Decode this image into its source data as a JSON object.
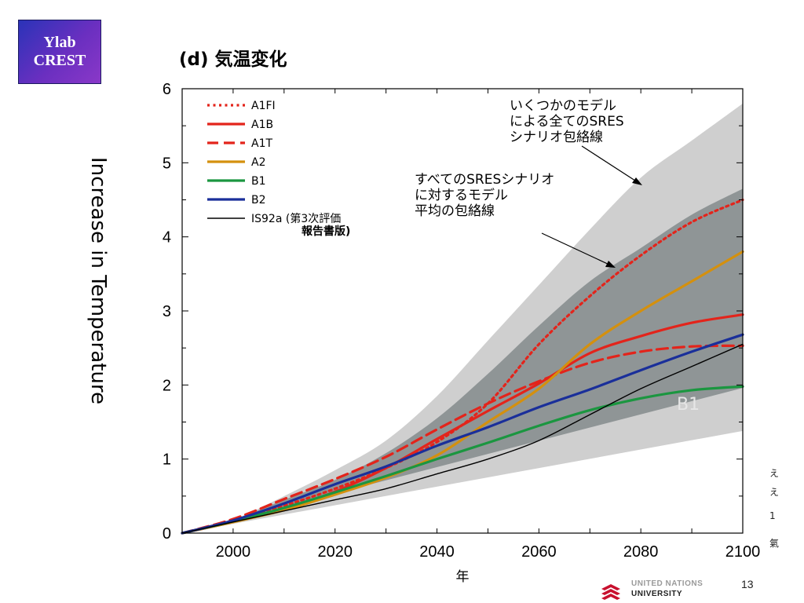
{
  "logo": {
    "line1": "Ylab",
    "line2": "CREST"
  },
  "chart_data": {
    "type": "line",
    "title": "(d) 気温変化",
    "xlabel": "年",
    "ylabel": "Increase in Temperature",
    "xlim": [
      1990,
      2100
    ],
    "ylim": [
      0,
      6
    ],
    "xticks": [
      2000,
      2020,
      2040,
      2060,
      2080,
      2100
    ],
    "yticks": [
      0,
      1,
      2,
      3,
      4,
      5,
      6
    ],
    "legend_position": "top-left",
    "x": [
      1990,
      2000,
      2010,
      2020,
      2030,
      2040,
      2050,
      2060,
      2070,
      2080,
      2090,
      2100
    ],
    "series": [
      {
        "name": "A1FI",
        "style": "dotted",
        "color": "#e3241b",
        "values": [
          0,
          0.17,
          0.37,
          0.6,
          0.88,
          1.23,
          1.75,
          2.55,
          3.2,
          3.75,
          4.2,
          4.5
        ]
      },
      {
        "name": "A1B",
        "style": "solid",
        "color": "#e3241b",
        "values": [
          0,
          0.15,
          0.33,
          0.56,
          0.88,
          1.27,
          1.65,
          2.02,
          2.43,
          2.66,
          2.84,
          2.95
        ]
      },
      {
        "name": "A1T",
        "style": "dashed",
        "color": "#e3241b",
        "values": [
          0,
          0.19,
          0.46,
          0.73,
          1.03,
          1.4,
          1.75,
          2.05,
          2.3,
          2.45,
          2.52,
          2.53
        ]
      },
      {
        "name": "A2",
        "style": "solid",
        "color": "#d4900e",
        "values": [
          0,
          0.15,
          0.31,
          0.52,
          0.75,
          1.05,
          1.5,
          1.95,
          2.55,
          3.0,
          3.4,
          3.8
        ]
      },
      {
        "name": "B1",
        "style": "solid",
        "color": "#1b9640",
        "values": [
          0,
          0.16,
          0.34,
          0.55,
          0.77,
          1.0,
          1.22,
          1.45,
          1.66,
          1.82,
          1.93,
          1.98
        ]
      },
      {
        "name": "B2",
        "style": "solid",
        "color": "#1a2f9a",
        "values": [
          0,
          0.17,
          0.4,
          0.66,
          0.9,
          1.18,
          1.43,
          1.7,
          1.94,
          2.2,
          2.45,
          2.68
        ]
      },
      {
        "name": "IS92a (第3次評価\n報告書版)",
        "style": "solid",
        "color": "#000000",
        "values": [
          0,
          0.15,
          0.3,
          0.45,
          0.6,
          0.8,
          1.0,
          1.25,
          1.6,
          1.95,
          2.25,
          2.55
        ]
      }
    ],
    "bands": [
      {
        "name": "いくつかのモデルによる全てのSRESシナリオ包絡線",
        "color": "#cfcfcf",
        "x": [
          1990,
          2000,
          2010,
          2020,
          2030,
          2040,
          2050,
          2060,
          2070,
          2080,
          2090,
          2100
        ],
        "low": [
          0,
          0.1,
          0.18,
          0.3,
          0.42,
          0.55,
          0.72,
          0.85,
          1.02,
          1.28,
          1.35,
          1.38
        ],
        "high": [
          0,
          0.18,
          0.5,
          0.85,
          1.25,
          1.85,
          2.6,
          3.35,
          4.1,
          4.8,
          5.3,
          5.8
        ]
      },
      {
        "name": "すべてのSRESシナリオに対するモデル平均の包絡線",
        "color": "#8f9596",
        "x": [
          1990,
          2000,
          2010,
          2020,
          2030,
          2040,
          2050,
          2060,
          2070,
          2080,
          2090,
          2100
        ],
        "low": [
          0,
          0.13,
          0.3,
          0.48,
          0.65,
          0.85,
          1.05,
          1.25,
          1.5,
          1.7,
          1.85,
          1.96
        ],
        "high": [
          0,
          0.18,
          0.45,
          0.72,
          1.08,
          1.55,
          2.15,
          2.8,
          3.4,
          3.85,
          4.3,
          4.65
        ]
      }
    ],
    "annotations": [
      {
        "text": "いくつかのモデル\nによる全てのSRES\nシナリオ包絡線"
      },
      {
        "text": "すべてのSRESシナリオ\nに対するモデル\n平均の包絡線"
      },
      {
        "text": "B1"
      }
    ]
  },
  "footer": {
    "org_top": "UNITED NATIONS",
    "org": "UNIVERSITY",
    "page": "13"
  },
  "edge_text": [
    "え",
    "え",
    "1",
    "氣"
  ]
}
